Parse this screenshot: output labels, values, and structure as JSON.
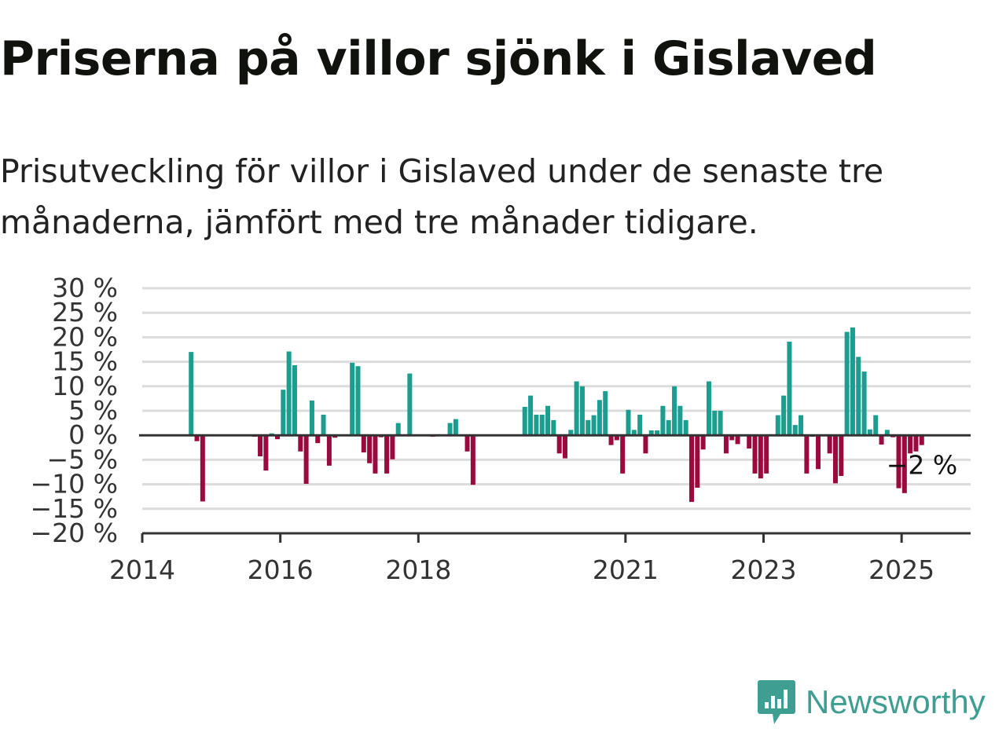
{
  "title": "Priserna på villor sjönk i Gislaved",
  "subtitle": "Prisutveckling för villor i Gislaved under de senaste tre månaderna, jämfört med tre månader tidigare.",
  "brand": {
    "name": "Newsworthy",
    "icon": "newsworthy-logo-icon",
    "color": "#3e9e91"
  },
  "colors": {
    "positive": "#1b9e8f",
    "negative": "#9b0a3f",
    "grid": "#dcdcdc",
    "zero": "#333333"
  },
  "chart_data": {
    "type": "bar",
    "ylabel": "",
    "xlabel": "",
    "ylim": [
      -20,
      30
    ],
    "yticks": [
      "30 %",
      "25 %",
      "20 %",
      "15 %",
      "10 %",
      "5 %",
      "0 %",
      "−5 %",
      "−10 %",
      "−15 %",
      "−20 %"
    ],
    "xticks": [
      "2014",
      "2016",
      "2018",
      "2021",
      "2023",
      "2025"
    ],
    "xrange": [
      "2014-01",
      "2025-12"
    ],
    "annotation": {
      "text": "−2 %",
      "date": "2025-04",
      "value": -2
    },
    "series": [
      {
        "dates": [
          "2014-09",
          "2014-10",
          "2014-11",
          "2015-08",
          "2015-09",
          "2015-10",
          "2015-11",
          "2015-12",
          "2016-01",
          "2016-02",
          "2016-03",
          "2016-04",
          "2016-05",
          "2016-06",
          "2016-07",
          "2016-08",
          "2016-09",
          "2016-10",
          "2016-11",
          "2017-01",
          "2017-02",
          "2017-03",
          "2017-04",
          "2017-05",
          "2017-06",
          "2017-07",
          "2017-08",
          "2017-09",
          "2017-10",
          "2017-11",
          "2018-03",
          "2018-06",
          "2018-07",
          "2018-09",
          "2018-10",
          "2019-07",
          "2019-08",
          "2019-09",
          "2019-10",
          "2019-11",
          "2019-12",
          "2020-01",
          "2020-02",
          "2020-03",
          "2020-04",
          "2020-05",
          "2020-06",
          "2020-07",
          "2020-08",
          "2020-09",
          "2020-10",
          "2020-11",
          "2020-12",
          "2021-01",
          "2021-02",
          "2021-03",
          "2021-04",
          "2021-05",
          "2021-06",
          "2021-07",
          "2021-08",
          "2021-09",
          "2021-10",
          "2021-11",
          "2021-12",
          "2022-01",
          "2022-02",
          "2022-03",
          "2022-04",
          "2022-05",
          "2022-06",
          "2022-07",
          "2022-08",
          "2022-09",
          "2022-10",
          "2022-11",
          "2022-12",
          "2023-01",
          "2023-03",
          "2023-04",
          "2023-05",
          "2023-06",
          "2023-07",
          "2023-08",
          "2023-09",
          "2023-10",
          "2023-11",
          "2023-12",
          "2024-01",
          "2024-02",
          "2024-03",
          "2024-04",
          "2024-05",
          "2024-06",
          "2024-07",
          "2024-08",
          "2024-09",
          "2024-10",
          "2024-11",
          "2024-12",
          "2025-01",
          "2025-02",
          "2025-03",
          "2025-04"
        ],
        "values": [
          17,
          -1.2,
          -13.5,
          -0.3,
          -4.3,
          -7.2,
          0.4,
          -0.8,
          9.3,
          17.1,
          14.3,
          -3.3,
          -9.9,
          7.1,
          -1.6,
          4.2,
          -6.2,
          -0.5,
          -0.1,
          14.8,
          14.1,
          -3.5,
          -5.7,
          -7.8,
          -0.4,
          -7.8,
          -4.9,
          2.5,
          0.1,
          12.6,
          -0.3,
          2.5,
          3.3,
          -3.3,
          -10.1,
          5.8,
          8.1,
          4.2,
          4.2,
          6.0,
          3.1,
          -3.7,
          -4.7,
          1.1,
          11.0,
          10.0,
          3.1,
          4.1,
          7.2,
          9.0,
          -2.0,
          -1.0,
          -7.8,
          5.2,
          1.1,
          4.2,
          -3.7,
          1.0,
          1.0,
          6.0,
          3.1,
          10.0,
          6.0,
          3.1,
          -13.6,
          -10.7,
          -2.9,
          11.0,
          5.0,
          5.0,
          -3.7,
          -1.0,
          -1.8,
          -0.2,
          -2.7,
          -7.8,
          -8.8,
          -7.8,
          4.1,
          8.1,
          19.1,
          2.1,
          4.1,
          -7.8,
          -0.3,
          -6.9,
          -0.2,
          -3.7,
          -9.8,
          -8.3,
          21.1,
          22.0,
          16.0,
          13.0,
          1.2,
          4.1,
          -1.9,
          1.1,
          -0.4,
          -10.8,
          -11.8,
          -3.7,
          -3.3,
          -2.0
        ]
      }
    ]
  }
}
